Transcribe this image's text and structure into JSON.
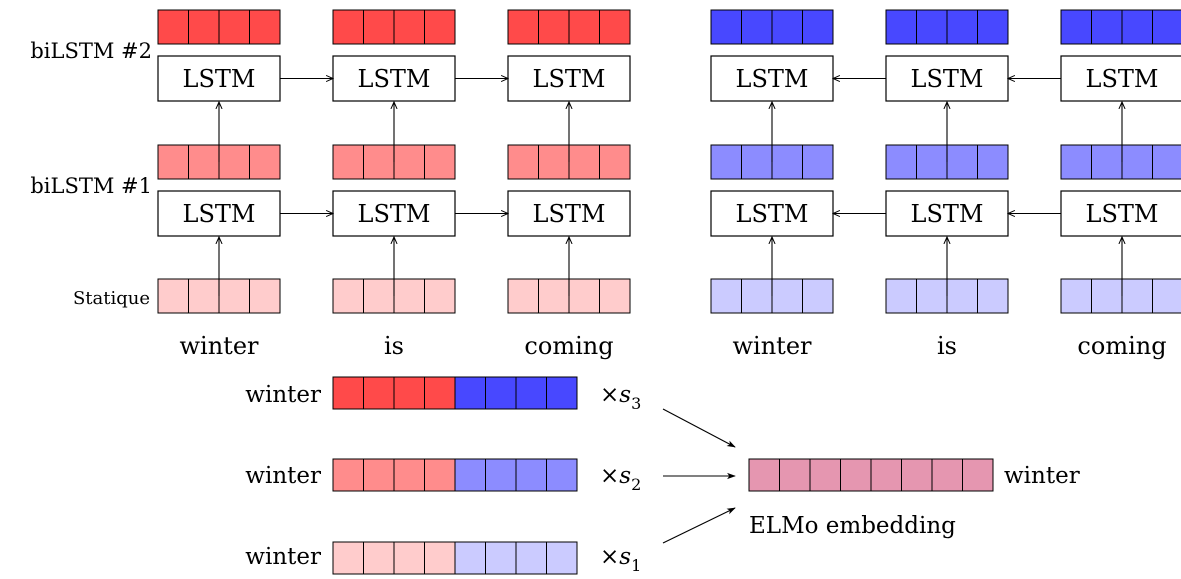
{
  "layer_labels": {
    "layer2": "biLSTM #2",
    "layer1": "biLSTM #1",
    "static": "Statique"
  },
  "lstm_label": "LSTM",
  "forward_words": [
    "winter",
    "is",
    "coming"
  ],
  "backward_words": [
    "winter",
    "is",
    "coming"
  ],
  "combination": {
    "rows": [
      {
        "word": "winter",
        "scale_symbol": "×",
        "scale_var": "s",
        "scale_sub": "3"
      },
      {
        "word": "winter",
        "scale_symbol": "×",
        "scale_var": "s",
        "scale_sub": "2"
      },
      {
        "word": "winter",
        "scale_symbol": "×",
        "scale_var": "s",
        "scale_sub": "1"
      }
    ],
    "output_word": "winter",
    "output_caption": "ELMo embedding"
  },
  "colors": {
    "forward_layer2": "#ff4a4a",
    "forward_layer1": "#ff8c8c",
    "forward_static": "#ffcccc",
    "backward_layer2": "#4848ff",
    "backward_layer1": "#8c8cff",
    "backward_static": "#cbcbff",
    "elmo": "#e596b0"
  }
}
